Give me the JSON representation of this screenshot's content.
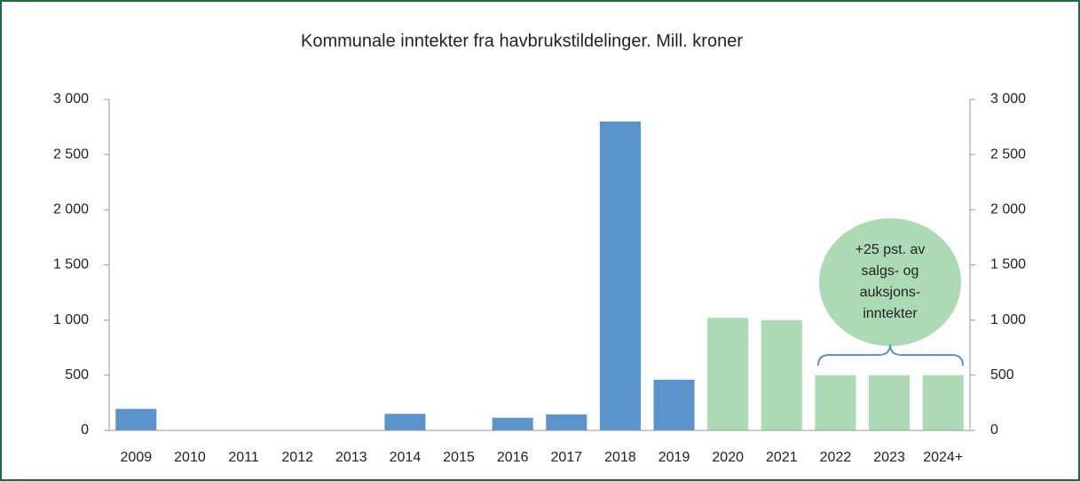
{
  "chart_data": {
    "type": "bar",
    "title": "Kommunale inntekter fra havbrukstildelinger. Mill. kroner",
    "categories": [
      "2009",
      "2010",
      "2011",
      "2012",
      "2013",
      "2014",
      "2015",
      "2016",
      "2017",
      "2018",
      "2019",
      "2020",
      "2021",
      "2022",
      "2023",
      "2024+"
    ],
    "values": [
      195,
      0,
      0,
      0,
      0,
      150,
      0,
      115,
      145,
      2800,
      460,
      1020,
      1000,
      500,
      500,
      500
    ],
    "colors": [
      "#5b93cc",
      "#5b93cc",
      "#5b93cc",
      "#5b93cc",
      "#5b93cc",
      "#5b93cc",
      "#5b93cc",
      "#5b93cc",
      "#5b93cc",
      "#5b93cc",
      "#5b93cc",
      "#acdab4",
      "#acdab4",
      "#acdab4",
      "#acdab4",
      "#acdab4"
    ],
    "ylim": [
      0,
      3000
    ],
    "yticks": [
      0,
      500,
      {
        "value": 1000,
        "label": "1 000"
      },
      {
        "value": 1500,
        "label": "1 500"
      },
      {
        "value": 2000,
        "label": "2 000"
      },
      {
        "value": 2500,
        "label": "2 500"
      },
      {
        "value": 3000,
        "label": "3 000"
      }
    ],
    "y2lim": [
      0,
      3000
    ],
    "y2ticks": [
      0,
      500,
      {
        "value": 1000,
        "label": "1 000"
      },
      {
        "value": 1500,
        "label": "1 500"
      },
      {
        "value": 2000,
        "label": "2 000"
      },
      {
        "value": 2500,
        "label": "2 500"
      },
      {
        "value": 3000,
        "label": "3 000"
      }
    ],
    "annotation": [
      "+25 pst. av",
      "salgs- og",
      "auksjons-",
      "inntekter"
    ]
  }
}
